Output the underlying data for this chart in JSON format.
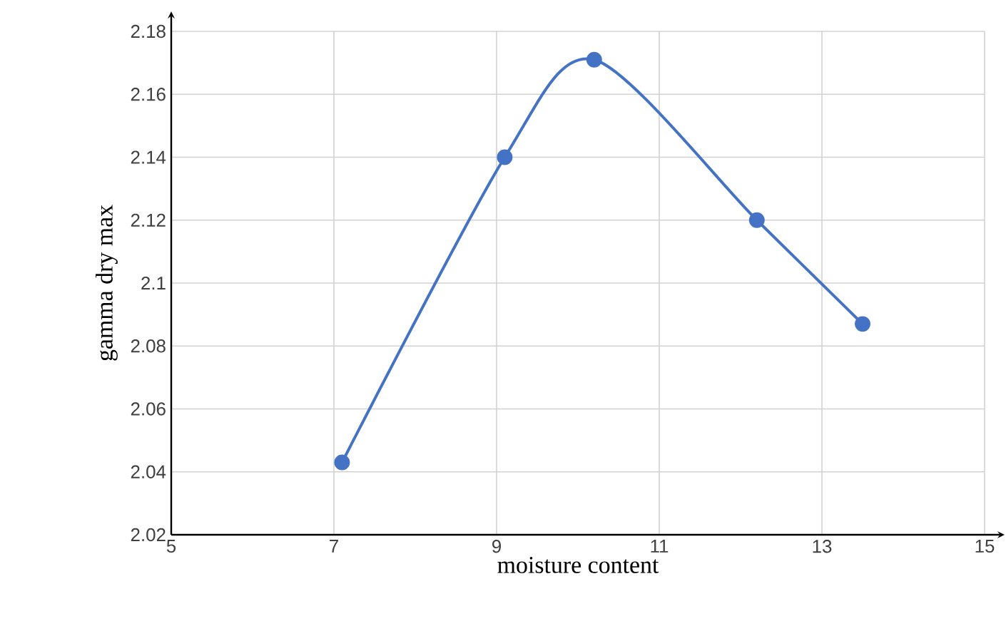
{
  "chart_data": {
    "type": "line",
    "xlabel": "moisture content",
    "ylabel": "gamma dry max",
    "x": [
      7.1,
      9.1,
      10.2,
      12.2,
      13.5
    ],
    "series": [
      {
        "color": "#4472c4",
        "values": [
          2.043,
          2.14,
          2.171,
          2.12,
          2.087
        ]
      }
    ],
    "xlim": [
      5,
      15
    ],
    "ylim": [
      2.02,
      2.18
    ],
    "xticks": [
      5,
      7,
      9,
      11,
      13,
      15
    ],
    "yticks": [
      2.02,
      2.04,
      2.06,
      2.08,
      2.1,
      2.12,
      2.14,
      2.16,
      2.18
    ],
    "grid": true,
    "marker": "circle",
    "line_style": "solid"
  }
}
